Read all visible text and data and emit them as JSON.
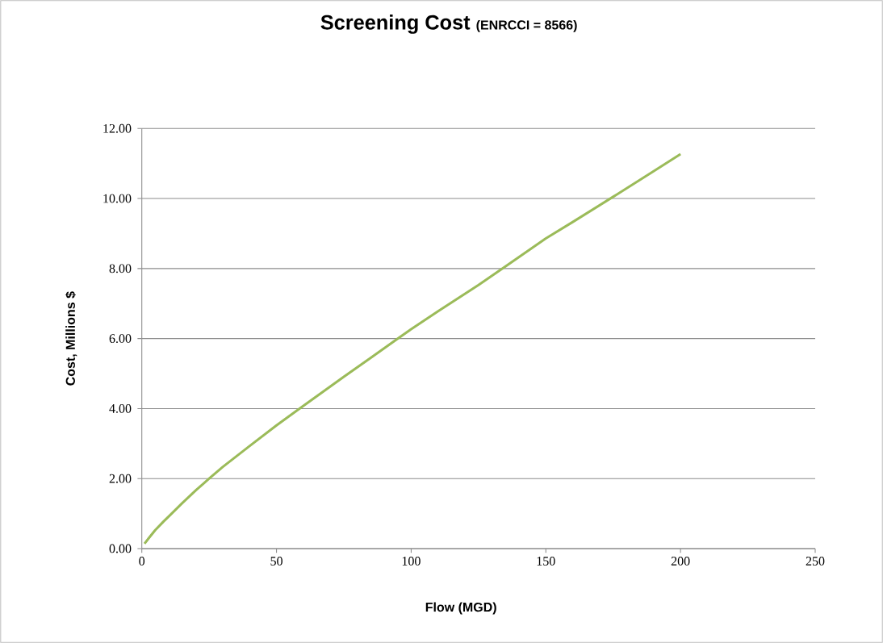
{
  "chart_data": {
    "type": "line",
    "title": "Screening Cost",
    "subtitle": "(ENRCCI = 8566)",
    "xlabel": "Flow (MGD)",
    "ylabel": "Cost, Millions $",
    "x": [
      1,
      3,
      5,
      8,
      10,
      15,
      20,
      25,
      30,
      40,
      50,
      60,
      75,
      85,
      95,
      100,
      110,
      125,
      135,
      150,
      160,
      175,
      190,
      200
    ],
    "values": [
      0.14,
      0.34,
      0.53,
      0.77,
      0.92,
      1.3,
      1.66,
      2.0,
      2.33,
      2.93,
      3.52,
      4.08,
      4.91,
      5.45,
      6.0,
      6.27,
      6.78,
      7.53,
      8.06,
      8.86,
      9.33,
      10.05,
      10.78,
      11.27
    ],
    "color": "#9bbb59",
    "xlim": [
      0,
      250
    ],
    "xticks": [
      0,
      50,
      100,
      150,
      200,
      250
    ],
    "ylim": [
      0,
      12
    ],
    "yticks": [
      {
        "value": 0,
        "label": "0.00"
      },
      {
        "value": 2,
        "label": "2.00"
      },
      {
        "value": 4,
        "label": "4.00"
      },
      {
        "value": 6,
        "label": "6.00"
      },
      {
        "value": 8,
        "label": "8.00"
      },
      {
        "value": 10,
        "label": "10.00"
      },
      {
        "value": 12,
        "label": "12.00"
      }
    ],
    "grid": "y"
  }
}
